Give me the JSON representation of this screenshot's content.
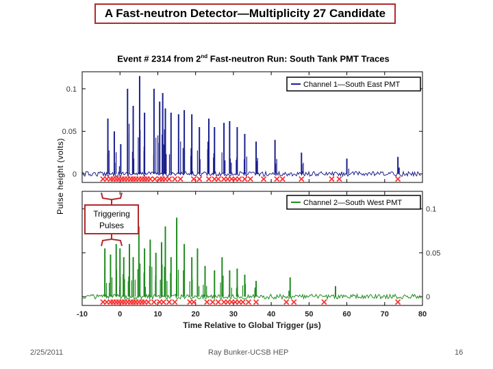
{
  "slide": {
    "title": "A Fast-neutron Detector—Multiplicity 27 Candidate",
    "subtitle_pre": "Event # 2314 from 2",
    "subtitle_sup": "nd",
    "subtitle_post": " Fast-neutron Run:  South Tank PMT Traces",
    "date": "2/25/2011",
    "author": "Ray Bunker-UCSB HEP",
    "page": "16",
    "annotation": [
      "Triggering",
      "Pulses"
    ]
  },
  "colors": {
    "ch1": "#1a1f8c",
    "ch2": "#1f8a1f",
    "marker": "#ff2a2a",
    "title_border": "#b0282a"
  },
  "chart_data": [
    {
      "type": "line",
      "series": [
        {
          "name": "Channel 1—South East PMT"
        }
      ],
      "ylabel": "Pulse height (volts)",
      "xlim": [
        -10,
        80
      ],
      "ylim": [
        -0.01,
        0.12
      ],
      "ticks_y": [
        "0",
        "0.05",
        "0.1"
      ],
      "y_tick_values": [
        0,
        0.05,
        0.1
      ],
      "legend_position": "top-right",
      "grid": false,
      "pulses": [
        {
          "x": -3.2,
          "y": 0.065
        },
        {
          "x": -1.5,
          "y": 0.05
        },
        {
          "x": 0.2,
          "y": 0.035
        },
        {
          "x": 2.0,
          "y": 0.1
        },
        {
          "x": 3.5,
          "y": 0.08
        },
        {
          "x": 5.2,
          "y": 0.115
        },
        {
          "x": 6.5,
          "y": 0.072
        },
        {
          "x": 9.0,
          "y": 0.1
        },
        {
          "x": 10.5,
          "y": 0.085
        },
        {
          "x": 11.3,
          "y": 0.095
        },
        {
          "x": 12.0,
          "y": 0.077
        },
        {
          "x": 13.5,
          "y": 0.072
        },
        {
          "x": 15.5,
          "y": 0.07
        },
        {
          "x": 17.0,
          "y": 0.075
        },
        {
          "x": 19.0,
          "y": 0.07
        },
        {
          "x": 21.0,
          "y": 0.055
        },
        {
          "x": 23.5,
          "y": 0.065
        },
        {
          "x": 25.0,
          "y": 0.055
        },
        {
          "x": 27.5,
          "y": 0.06
        },
        {
          "x": 29.0,
          "y": 0.062
        },
        {
          "x": 31.0,
          "y": 0.055
        },
        {
          "x": 33.0,
          "y": 0.047
        },
        {
          "x": 36.0,
          "y": 0.038
        },
        {
          "x": 41.0,
          "y": 0.04
        },
        {
          "x": 48.0,
          "y": 0.025
        },
        {
          "x": 60.0,
          "y": 0.018
        },
        {
          "x": 73.5,
          "y": 0.02
        }
      ],
      "trigger_markers": [
        -4.5,
        -3.5,
        -2.5,
        -1.8,
        -1.0,
        -0.3,
        0.5,
        1.2,
        2.0,
        2.8,
        3.5,
        4.2,
        5.0,
        5.8,
        6.5,
        7.2,
        8.0,
        9.2,
        10.5,
        11.2,
        12.0,
        13.0,
        14.5,
        16.0,
        19.5,
        21.0,
        23.5,
        25.0,
        26.0,
        27.5,
        28.5,
        29.5,
        30.5,
        31.5,
        33.0,
        34.5,
        38.0,
        41.5,
        43.0,
        48.0,
        56.0,
        58.0,
        73.5
      ]
    },
    {
      "type": "line",
      "series": [
        {
          "name": "Channel 2—South West PMT"
        }
      ],
      "xlabel": "Time Relative to Global Trigger (µs)",
      "xlim": [
        -10,
        80
      ],
      "ylim": [
        -0.01,
        0.12
      ],
      "ticks_x": [
        "-10",
        "0",
        "10",
        "20",
        "30",
        "40",
        "50",
        "60",
        "70",
        "80"
      ],
      "x_tick_values": [
        -10,
        0,
        10,
        20,
        30,
        40,
        50,
        60,
        70,
        80
      ],
      "ticks_y": [
        "0",
        "0.05",
        "0.1"
      ],
      "y_tick_values": [
        0,
        0.05,
        0.1
      ],
      "legend_position": "top-right",
      "grid": false,
      "pulses": [
        {
          "x": -4.0,
          "y": 0.055
        },
        {
          "x": -2.5,
          "y": 0.048
        },
        {
          "x": -1.0,
          "y": 0.06
        },
        {
          "x": 0.0,
          "y": 0.055
        },
        {
          "x": 1.0,
          "y": 0.045
        },
        {
          "x": 2.5,
          "y": 0.06
        },
        {
          "x": 3.5,
          "y": 0.045
        },
        {
          "x": 5.0,
          "y": 0.08
        },
        {
          "x": 6.5,
          "y": 0.055
        },
        {
          "x": 8.0,
          "y": 0.065
        },
        {
          "x": 9.5,
          "y": 0.05
        },
        {
          "x": 11.0,
          "y": 0.062
        },
        {
          "x": 12.0,
          "y": 0.08
        },
        {
          "x": 13.5,
          "y": 0.045
        },
        {
          "x": 15.0,
          "y": 0.09
        },
        {
          "x": 17.0,
          "y": 0.06
        },
        {
          "x": 19.0,
          "y": 0.045
        },
        {
          "x": 20.5,
          "y": 0.055
        },
        {
          "x": 22.5,
          "y": 0.035
        },
        {
          "x": 25.0,
          "y": 0.03
        },
        {
          "x": 27.0,
          "y": 0.045
        },
        {
          "x": 29.0,
          "y": 0.03
        },
        {
          "x": 31.0,
          "y": 0.032
        },
        {
          "x": 33.0,
          "y": 0.025
        },
        {
          "x": 36.0,
          "y": 0.018
        },
        {
          "x": 45.0,
          "y": 0.022
        },
        {
          "x": 57.0,
          "y": 0.012
        }
      ],
      "trigger_markers": [
        -4.5,
        -3.5,
        -2.5,
        -1.8,
        -1.0,
        -0.3,
        0.5,
        1.2,
        2.0,
        2.8,
        3.5,
        4.2,
        5.0,
        5.8,
        6.5,
        7.5,
        9.0,
        10.5,
        11.5,
        13.0,
        14.5,
        18.5,
        19.5,
        23.0,
        24.5,
        26.0,
        27.5,
        28.5,
        29.5,
        30.5,
        31.5,
        32.5,
        34.0,
        36.0,
        44.0,
        46.0,
        54.0,
        73.5
      ]
    }
  ]
}
